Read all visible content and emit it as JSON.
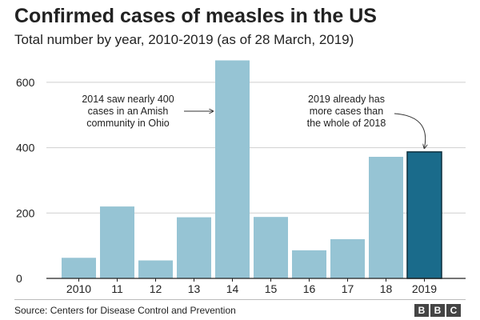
{
  "header": {
    "title": "Confirmed cases of measles in the US",
    "subtitle": "Total number by year, 2010-2019 (as of 28 March, 2019)"
  },
  "footer": {
    "source": "Source: Centers for Disease Control and Prevention",
    "logo_letters": [
      "B",
      "B",
      "C"
    ]
  },
  "colors": {
    "bar": "#96c4d4",
    "highlight_bar": "#1a6b8b",
    "highlight_outline": "#0d2f3d",
    "grid": "#cfcfcf",
    "axis": "#222222"
  },
  "chart_data": {
    "type": "bar",
    "title": "Confirmed cases of measles in the US",
    "subtitle": "Total number by year, 2010-2019 (as of 28 March, 2019)",
    "categories": [
      "2010",
      "11",
      "12",
      "13",
      "14",
      "15",
      "16",
      "17",
      "18",
      "2019"
    ],
    "values": [
      63,
      220,
      55,
      187,
      667,
      188,
      86,
      120,
      372,
      387
    ],
    "highlight_category": "2019",
    "ylim": [
      0,
      700
    ],
    "yticks": [
      0,
      200,
      400,
      600
    ],
    "grid": true,
    "xlabel": "",
    "ylabel": "",
    "annotations": [
      {
        "lines": [
          "2014 saw nearly 400",
          "cases in an Amish",
          "community in Ohio"
        ],
        "target_category": "14"
      },
      {
        "lines": [
          "2019 already has",
          "more cases than",
          "the whole of 2018"
        ],
        "target_category": "2019"
      }
    ]
  }
}
